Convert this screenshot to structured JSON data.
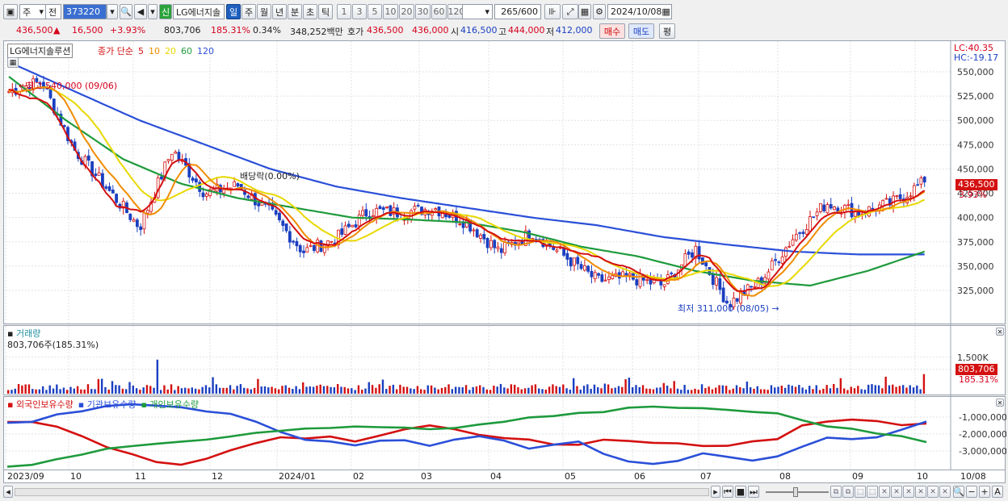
{
  "toolbar": {
    "market_select": "주",
    "order_mode": "전",
    "stock_code": "373220",
    "stock_badge": "신",
    "stock_name": "LG에너지솔",
    "period_tabs": [
      {
        "label": "일",
        "active": true
      },
      {
        "label": "주",
        "active": false
      },
      {
        "label": "월",
        "active": false
      },
      {
        "label": "년",
        "active": false
      },
      {
        "label": "분",
        "active": false
      },
      {
        "label": "초",
        "active": false
      },
      {
        "label": "틱",
        "active": false
      }
    ],
    "interval_buttons": [
      "1",
      "3",
      "5",
      "10",
      "20",
      "30",
      "60",
      "120"
    ],
    "count": "265",
    "count_max": "/600",
    "date": "2024/10/08"
  },
  "quote": {
    "price": "436,500",
    "change": "16,500",
    "change_pct": "+3.93%",
    "volume": "803,706",
    "volume_ratio": "185.31%",
    "turnover": "0.34%",
    "amount": "348,252백만",
    "bid_label": "호가",
    "bid": "436,500",
    "ask": "436,000",
    "open_label": "시",
    "open": "416,500",
    "high_label": "고",
    "high": "444,000",
    "low_label": "저",
    "low": "412,000",
    "buy_button": "매수",
    "sell_button": "매도",
    "eval_button": "평"
  },
  "price_panel": {
    "stock_label": "LG에너지솔루션",
    "ma_legend_prefix": "종가 단순",
    "ma_periods": [
      {
        "label": "5",
        "color": "#d41010"
      },
      {
        "label": "10",
        "color": "#f08c00"
      },
      {
        "label": "20",
        "color": "#e8d800"
      },
      {
        "label": "60",
        "color": "#1e9a3c"
      },
      {
        "label": "120",
        "color": "#2a4fd8"
      }
    ],
    "lc_label": "LC:40.35",
    "hc_label": "HC:-19.17",
    "high_annotation": "최고 540,000 (09/06)",
    "low_annotation": "최저 311,000 (08/05)",
    "dividend_annotation": "배당락(0.00%)",
    "y_ticks": [
      "550,000",
      "525,000",
      "500,000",
      "475,000",
      "450,000",
      "425,000",
      "400,000",
      "375,000",
      "350,000",
      "325,000"
    ],
    "last_price_tag": "436,500",
    "last_pct_tag": "3.93%"
  },
  "volume_panel": {
    "title": "거래량",
    "value_label": "803,706주(185.31%)",
    "y_ticks": [
      "1,500K",
      "1,000K"
    ],
    "last_tag": "803,706",
    "last_pct_tag": "185.31%"
  },
  "holdings_panel": {
    "series": [
      {
        "label": "외국인보유수량",
        "color": "#d41010"
      },
      {
        "label": "기관보유수량",
        "color": "#2a4fd8"
      },
      {
        "label": "개인보유수량",
        "color": "#1e9a3c"
      }
    ],
    "y_ticks": [
      "-1,000,000",
      "-2,000,000",
      "-3,000,000"
    ]
  },
  "x_axis": {
    "labels": [
      "2023/09",
      "10",
      "11",
      "12",
      "2024/01",
      "02",
      "03",
      "04",
      "05",
      "06",
      "07",
      "08",
      "09",
      "10"
    ],
    "end_label": "10/08"
  },
  "chart_data": {
    "type": "candlestick",
    "title": "",
    "xlabel": "",
    "ylabel": "",
    "ylim": [
      300000,
      570000
    ],
    "price_points": [
      {
        "x": "2023/09",
        "close": 530000
      },
      {
        "x": "2023/09/06",
        "close": 540000
      },
      {
        "x": "2023/10",
        "close": 470000
      },
      {
        "x": "2023/10/20",
        "close": 430000
      },
      {
        "x": "2023/11/01",
        "close": 390000
      },
      {
        "x": "2023/11/06",
        "close": 470000
      },
      {
        "x": "2023/11/15",
        "close": 425000
      },
      {
        "x": "2023/12",
        "close": 433000
      },
      {
        "x": "2024/01",
        "close": 405000
      },
      {
        "x": "2024/01/25",
        "close": 365000
      },
      {
        "x": "2024/02",
        "close": 378000
      },
      {
        "x": "2024/02/25",
        "close": 407000
      },
      {
        "x": "2024/03",
        "close": 405000
      },
      {
        "x": "2024/03/15",
        "close": 410000
      },
      {
        "x": "2024/04",
        "close": 395000
      },
      {
        "x": "2024/04/20",
        "close": 365000
      },
      {
        "x": "2024/05",
        "close": 385000
      },
      {
        "x": "2024/05/25",
        "close": 360000
      },
      {
        "x": "2024/06",
        "close": 335000
      },
      {
        "x": "2024/06/25",
        "close": 338000
      },
      {
        "x": "2024/07",
        "close": 330000
      },
      {
        "x": "2024/07/15",
        "close": 368000
      },
      {
        "x": "2024/08/05",
        "close": 311000
      },
      {
        "x": "2024/08/25",
        "close": 335000
      },
      {
        "x": "2024/09",
        "close": 380000
      },
      {
        "x": "2024/09/10",
        "close": 415000
      },
      {
        "x": "2024/09/25",
        "close": 405000
      },
      {
        "x": "2024/10",
        "close": 415000
      },
      {
        "x": "2024/10/08",
        "close": 436500
      }
    ],
    "ma_series": [
      {
        "name": "5",
        "values": [
          535000,
          470000,
          390000,
          460000,
          430000,
          410000,
          370000,
          400000,
          405000,
          395000,
          365000,
          385000,
          335000,
          365000,
          320000,
          390000,
          410000,
          420000
        ]
      },
      {
        "name": "60",
        "values": [
          545000,
          500000,
          460000,
          435000,
          420000,
          410000,
          400000,
          398000,
          395000,
          385000,
          370000,
          360000,
          345000,
          335000,
          330000,
          345000,
          365000
        ]
      },
      {
        "name": "120",
        "values": [
          560000,
          530000,
          500000,
          475000,
          450000,
          432000,
          420000,
          410000,
          400000,
          392000,
          380000,
          372000,
          365000,
          362000,
          362000
        ]
      }
    ],
    "volume": {
      "last": 803706,
      "ratio_pct": 185.31
    }
  }
}
